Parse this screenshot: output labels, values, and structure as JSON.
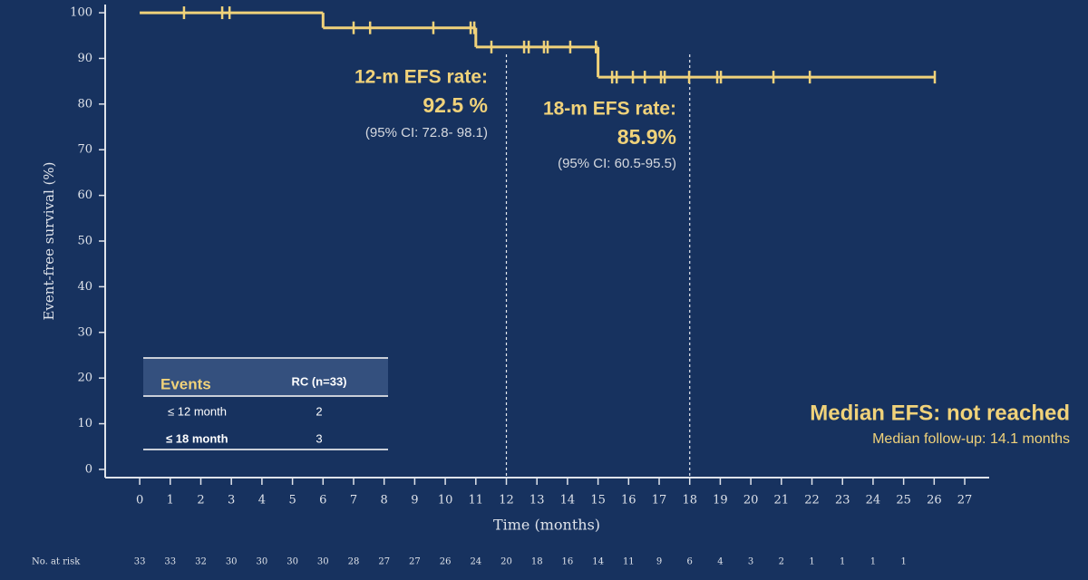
{
  "chart_data": {
    "type": "step",
    "x_label": "Time (months)",
    "y_label": "Event-free survival (%)",
    "xlim": [
      -1.13,
      27.8
    ],
    "ylim": [
      -1.8,
      101.8
    ],
    "xticks": [
      0,
      1,
      2,
      3,
      4,
      5,
      6,
      7,
      8,
      9,
      10,
      11,
      12,
      13,
      14,
      15,
      16,
      17,
      18,
      19,
      20,
      21,
      22,
      23,
      24,
      25,
      26,
      27
    ],
    "yticks": [
      0,
      10,
      20,
      30,
      40,
      50,
      60,
      70,
      80,
      90,
      100
    ],
    "color": "#f0d27a",
    "series": [
      {
        "x": [
          0,
          6,
          11,
          15
        ],
        "values": [
          100,
          96.7,
          92.5,
          85.9
        ]
      }
    ],
    "censored": {
      "x": [
        1.45,
        2.7,
        2.94,
        7.0,
        7.54,
        9.61,
        10.83,
        10.95,
        11.51,
        12.58,
        12.73,
        13.23,
        13.35,
        14.09,
        14.93,
        15.46,
        15.61,
        16.14,
        16.53,
        17.06,
        17.18,
        17.98,
        18.9,
        19.02,
        20.74,
        21.93,
        26.02
      ],
      "values": [
        100,
        100,
        100,
        96.7,
        96.7,
        96.7,
        96.7,
        96.7,
        92.5,
        92.5,
        92.5,
        92.5,
        92.5,
        92.5,
        92.5,
        85.9,
        85.9,
        85.9,
        85.9,
        85.9,
        85.9,
        85.9,
        85.9,
        85.9,
        85.9,
        85.9,
        85.9
      ]
    },
    "vlines": [
      12,
      18
    ],
    "annotations": {
      "rate12": [
        "12-m EFS rate:",
        "92.5 %",
        "(95% CI: 72.8- 98.1)"
      ],
      "rate18": [
        "18-m EFS rate:",
        "85.9%",
        "(95% CI: 60.5-95.5)"
      ],
      "median": "Median EFS: not reached",
      "follow_up": "Median follow-up: 14.1 months"
    },
    "events_table": {
      "header": [
        "Events",
        "RC (n=33)"
      ],
      "rows": [
        [
          "≤ 12 month",
          "2"
        ],
        [
          "≤ 18 month",
          "3"
        ]
      ]
    },
    "at_risk": {
      "label": "No. at risk",
      "x": [
        0,
        1,
        2,
        3,
        4,
        5,
        6,
        7,
        8,
        9,
        10,
        11,
        12,
        13,
        14,
        15,
        16,
        17,
        18,
        19,
        20,
        21,
        22,
        23,
        24,
        25
      ],
      "values": [
        33,
        33,
        32,
        30,
        30,
        30,
        30,
        28,
        27,
        27,
        26,
        24,
        20,
        18,
        16,
        14,
        11,
        9,
        6,
        4,
        3,
        2,
        1,
        1,
        1,
        1
      ]
    }
  }
}
